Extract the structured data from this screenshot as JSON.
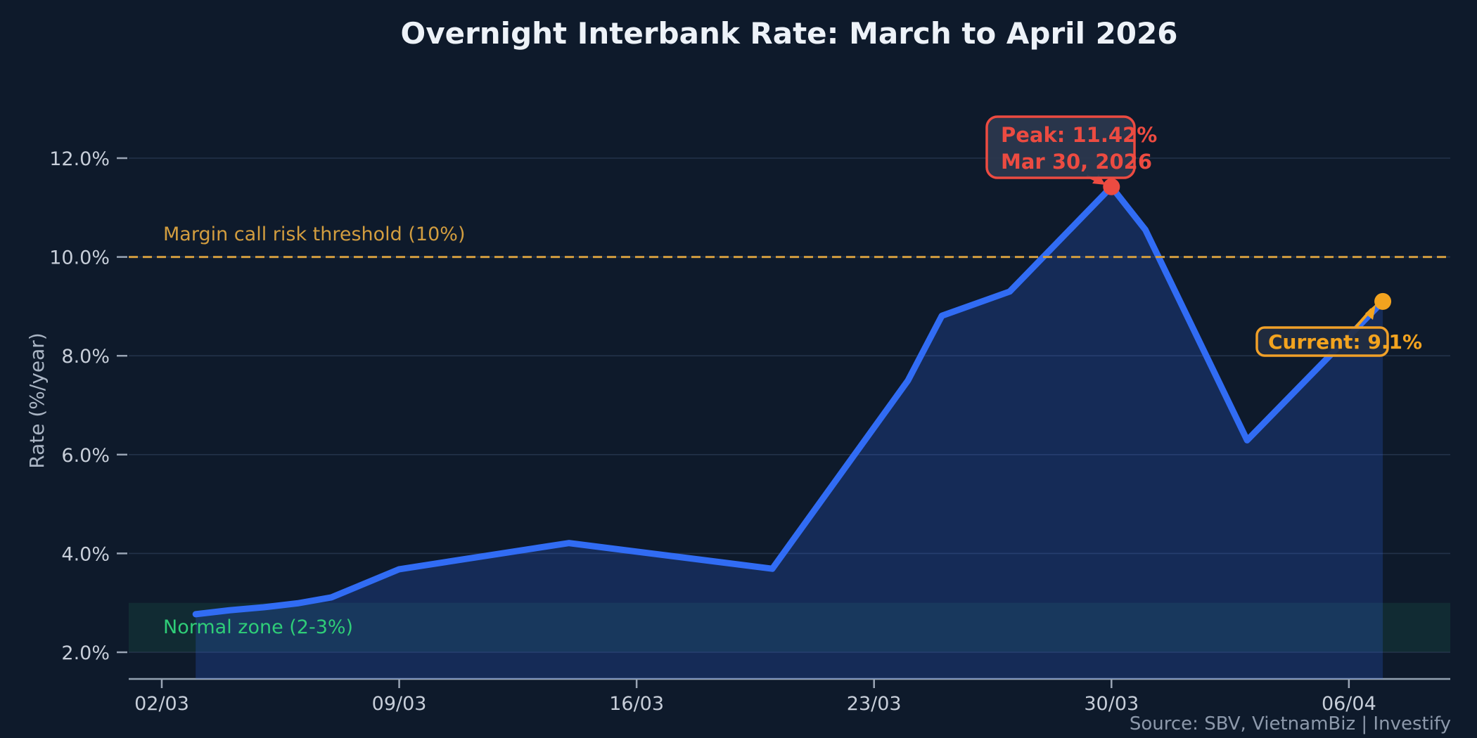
{
  "title": "Overnight Interbank Rate: March to April 2026",
  "y_axis": {
    "label": "Rate (%/year)",
    "tick_labels": [
      "2.0%",
      "4.0%",
      "6.0%",
      "8.0%",
      "10.0%",
      "12.0%"
    ],
    "tick_values": [
      2,
      4,
      6,
      8,
      10,
      12
    ]
  },
  "x_axis": {
    "tick_labels": [
      "02/03",
      "09/03",
      "16/03",
      "23/03",
      "30/03",
      "06/04"
    ],
    "tick_days": [
      0,
      7,
      14,
      21,
      28,
      35
    ]
  },
  "threshold": {
    "label": "Margin call risk threshold (10%)",
    "value": 10,
    "color": "#d29d3f"
  },
  "normal_zone": {
    "label": "Normal zone (2-3%)",
    "from": 2,
    "to": 3,
    "color": "#2fcd78"
  },
  "annotations": {
    "peak": {
      "line1": "Peak: 11.42%",
      "line2": "Mar 30, 2026",
      "day": 28,
      "value": 11.42,
      "color": "#ec4b41"
    },
    "current": {
      "label": "Current: 9.1%",
      "day": 36,
      "value": 9.1,
      "color": "#f2a31f"
    }
  },
  "footer": {
    "text": "Source: SBV, VietnamBiz  |  Investify"
  },
  "chart_data": {
    "type": "line",
    "series_name": "Overnight interbank rate (%/year)",
    "title": "Overnight Interbank Rate: March to April 2026",
    "xlabel": "",
    "ylabel": "Rate (%/year)",
    "ylim": [
      1.6,
      12.9
    ],
    "grid": "horizontal-only",
    "legend": "none",
    "line_color": "#316cf4",
    "area_fill": "rgba(49,106,245,0.22)",
    "points": [
      {
        "date": "03/03",
        "day": 1,
        "rate": 2.77
      },
      {
        "date": "04/03",
        "day": 2,
        "rate": 2.85
      },
      {
        "date": "05/03",
        "day": 3,
        "rate": 2.91
      },
      {
        "date": "06/03",
        "day": 4,
        "rate": 2.99
      },
      {
        "date": "07/03",
        "day": 5,
        "rate": 3.11
      },
      {
        "date": "09/03",
        "day": 7,
        "rate": 3.68
      },
      {
        "date": "14/03",
        "day": 12,
        "rate": 4.21
      },
      {
        "date": "20/03",
        "day": 18,
        "rate": 3.69
      },
      {
        "date": "24/03",
        "day": 22,
        "rate": 7.5
      },
      {
        "date": "25/03",
        "day": 23,
        "rate": 8.81
      },
      {
        "date": "27/03",
        "day": 25,
        "rate": 9.3
      },
      {
        "date": "30/03",
        "day": 28,
        "rate": 11.42
      },
      {
        "date": "31/03",
        "day": 29,
        "rate": 10.55
      },
      {
        "date": "03/04",
        "day": 32,
        "rate": 6.29
      },
      {
        "date": "07/04",
        "day": 36,
        "rate": 9.1
      }
    ]
  }
}
